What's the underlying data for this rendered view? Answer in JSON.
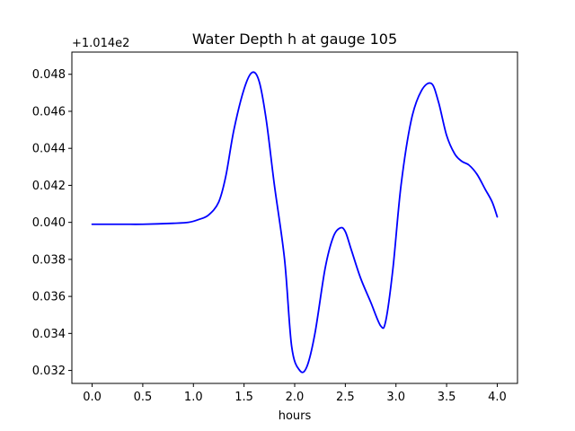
{
  "chart_data": {
    "type": "line",
    "title": "Water Depth h at gauge 105",
    "xlabel": "hours",
    "ylabel": "",
    "y_offset_label": "+1.014e2",
    "xlim": [
      -0.2,
      4.2
    ],
    "ylim": [
      0.0313,
      0.0492
    ],
    "x_ticks": [
      0.0,
      0.5,
      1.0,
      1.5,
      2.0,
      2.5,
      3.0,
      3.5,
      4.0
    ],
    "x_tick_labels": [
      "0.0",
      "0.5",
      "1.0",
      "1.5",
      "2.0",
      "2.5",
      "3.0",
      "3.5",
      "4.0"
    ],
    "y_ticks": [
      0.032,
      0.034,
      0.036,
      0.038,
      0.04,
      0.042,
      0.044,
      0.046,
      0.048
    ],
    "y_tick_labels": [
      "0.032",
      "0.034",
      "0.036",
      "0.038",
      "0.040",
      "0.042",
      "0.044",
      "0.046",
      "0.048"
    ],
    "grid": false,
    "series": [
      {
        "color": "#0000ff",
        "x": [
          0.0,
          0.3,
          0.5,
          0.8,
          0.95,
          1.05,
          1.15,
          1.25,
          1.32,
          1.4,
          1.5,
          1.58,
          1.65,
          1.72,
          1.8,
          1.9,
          1.97,
          2.05,
          2.12,
          2.2,
          2.3,
          2.38,
          2.45,
          2.5,
          2.56,
          2.65,
          2.75,
          2.85,
          2.9,
          2.97,
          3.05,
          3.15,
          3.25,
          3.35,
          3.42,
          3.5,
          3.58,
          3.65,
          3.72,
          3.8,
          3.88,
          3.95,
          4.0
        ],
        "y": [
          0.0399,
          0.0399,
          0.0399,
          0.03995,
          0.04,
          0.04015,
          0.0404,
          0.0411,
          0.0425,
          0.045,
          0.0472,
          0.0481,
          0.0476,
          0.0455,
          0.042,
          0.038,
          0.0333,
          0.032,
          0.0322,
          0.034,
          0.0375,
          0.0392,
          0.0397,
          0.0395,
          0.0385,
          0.037,
          0.0357,
          0.0344,
          0.0347,
          0.0375,
          0.042,
          0.0455,
          0.0471,
          0.0475,
          0.0465,
          0.0447,
          0.0437,
          0.0433,
          0.0431,
          0.0426,
          0.0418,
          0.0411,
          0.0403
        ]
      }
    ]
  }
}
